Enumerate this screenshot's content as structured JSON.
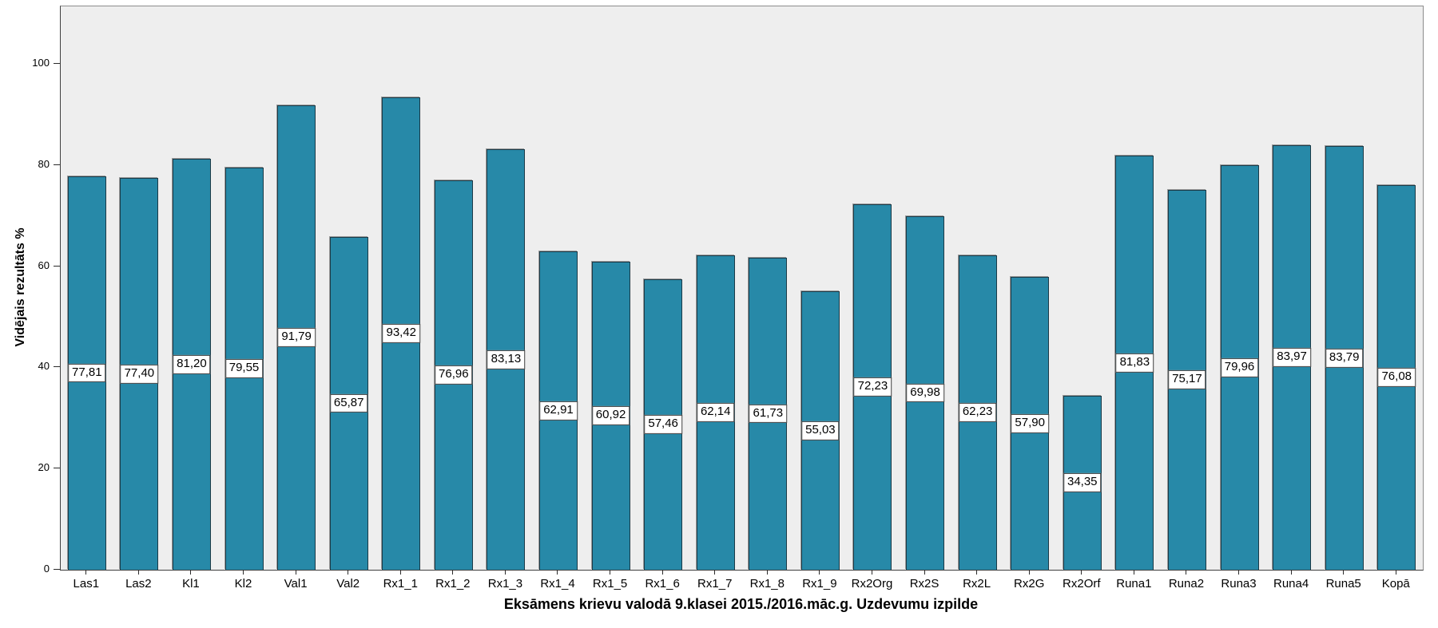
{
  "chart_data": {
    "type": "bar",
    "title": "Eksāmens krievu valodā 9.klasei 2015./2016.māc.g. Uzdevumu izpilde",
    "xlabel": "Eksāmens krievu valodā 9.klasei 2015./2016.māc.g. Uzdevumu izpilde",
    "ylabel": "Vidējais rezultāts %",
    "categories": [
      "Las1",
      "Las2",
      "Kl1",
      "Kl2",
      "Val1",
      "Val2",
      "Rx1_1",
      "Rx1_2",
      "Rx1_3",
      "Rx1_4",
      "Rx1_5",
      "Rx1_6",
      "Rx1_7",
      "Rx1_8",
      "Rx1_9",
      "Rx2Org",
      "Rx2S",
      "Rx2L",
      "Rx2G",
      "Rx2Orf",
      "Runa1",
      "Runa2",
      "Runa3",
      "Runa4",
      "Runa5",
      "Kopā"
    ],
    "values": [
      77.81,
      77.4,
      81.2,
      79.55,
      91.79,
      65.87,
      93.42,
      76.96,
      83.13,
      62.91,
      60.92,
      57.46,
      62.14,
      61.73,
      55.03,
      72.23,
      69.98,
      62.23,
      57.9,
      34.35,
      81.83,
      75.17,
      79.96,
      83.97,
      83.79,
      76.08
    ],
    "value_labels": [
      "77,81",
      "77,40",
      "81,20",
      "79,55",
      "91,79",
      "65,87",
      "93,42",
      "76,96",
      "83,13",
      "62,91",
      "60,92",
      "57,46",
      "62,14",
      "61,73",
      "55,03",
      "72,23",
      "69,98",
      "62,23",
      "57,90",
      "34,35",
      "81,83",
      "75,17",
      "79,96",
      "83,97",
      "83,79",
      "76,08"
    ],
    "yticks": [
      0,
      20,
      40,
      60,
      80,
      100
    ],
    "ylim": [
      0,
      100
    ],
    "grid": false,
    "legend_position": "none",
    "value_label_position": "bar-center",
    "colors": {
      "bar_fill": "#2789A8",
      "bar_border": "#1B3A47",
      "plot_background": "#EEEEEE",
      "value_label_bg": "#FFFFFF",
      "value_label_border": "#3C3C3C",
      "axis": "#2B2B2B"
    }
  }
}
